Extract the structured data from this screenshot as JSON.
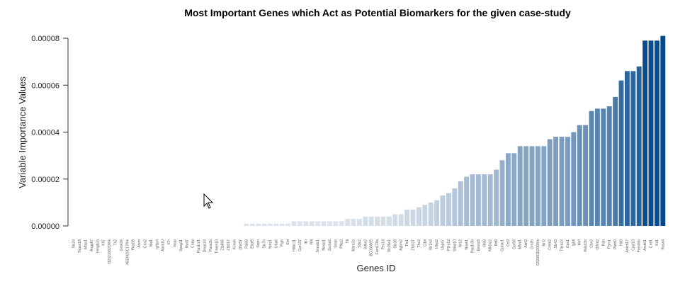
{
  "chart_data": {
    "type": "bar",
    "title": "Most Important Genes which Act as Potential Biomarkers for the given case-study",
    "xlabel": "Genes ID",
    "ylabel": "Variable Importance Values",
    "ylim": [
      0,
      8e-05
    ],
    "yticks": [
      "0.00000",
      "0.00002",
      "0.00004",
      "0.00006",
      "0.00008"
    ],
    "color_low": "#dfe6ee",
    "color_high": "#084a8c",
    "grid": false,
    "categories": [
      "Slc24",
      "Tspan18",
      "Mtap1",
      "Angptl7",
      "Hmgb2a",
      "Kit7",
      "B2021002ORik",
      "Tk2",
      "Gm426",
      "4833420C17Rik",
      "Pkp1l8",
      "Arxm",
      "Cnn2",
      "Nxt1",
      "Igfbp4",
      "Abcb10",
      "Il7r",
      "Vasp",
      "Spag11",
      "Nud7",
      "Cnpy",
      "Ppp1r21",
      "Dnajc24",
      "Panx2b",
      "Tmem18",
      "Zfp866",
      "Zfp317",
      "Kcnab",
      "Dhx57",
      "Pald3",
      "Ebpl5",
      "Sspn",
      "Slc7b",
      "Spry1",
      "Uba6",
      "Pigb",
      "Ehf",
      "Hdac11",
      "Gpr137",
      "Itln",
      "Rfll",
      "Smndc1",
      "Nosip1",
      "Zcchc6",
      "Strab",
      "Pfkp2",
      "Ttl",
      "Marc2a",
      "Sde2",
      "Sdhx2",
      "BC003965",
      "Fam178a",
      "Pex14",
      "Slc35e1",
      "Slc38",
      "Agbm2",
      "Ttc1",
      "Zfp137",
      "Tbx2",
      "Cdpl",
      "Slc2a3",
      "Ufsp2",
      "Uap47",
      "P2ry12",
      "Stepl10",
      "Nr12",
      "Nuak1",
      "Ppp1r3b",
      "Exosc8",
      "Bid3",
      "Nfkbiz2",
      "Bd9",
      "Gpbar1",
      "Ccl3",
      "Gpr56",
      "Mbnl1",
      "Adrl2",
      "Grn2b",
      "G530011O06Rik",
      "Nrf2",
      "Crebl2",
      "Slc43",
      "Tbxa23",
      "Gpc1",
      "Igbfl",
      "Mef",
      "Rab33b",
      "Cbx3",
      "Olfml2",
      "Rab",
      "Pam1",
      "Pleld2",
      "Hlt3",
      "Ankrd17",
      "Cpsf13",
      "Fam46b",
      "Arsb01",
      "Cntf1",
      "Kit1",
      "Rasa4"
    ],
    "values": [
      0,
      0,
      0,
      0,
      0,
      0,
      0,
      0,
      0,
      0,
      0,
      0,
      0,
      0,
      0,
      0,
      0,
      0,
      0,
      0,
      0,
      0,
      0,
      0,
      0,
      0,
      0,
      0,
      0,
      1e-06,
      1e-06,
      1e-06,
      1e-06,
      1e-06,
      1e-06,
      1e-06,
      1e-06,
      2e-06,
      2e-06,
      2e-06,
      2e-06,
      2e-06,
      2e-06,
      2e-06,
      2e-06,
      2e-06,
      3e-06,
      3e-06,
      3e-06,
      4e-06,
      4e-06,
      4e-06,
      4e-06,
      4e-06,
      5e-06,
      5e-06,
      7e-06,
      7e-06,
      8e-06,
      9e-06,
      1e-05,
      1.1e-05,
      1.3e-05,
      1.4e-05,
      1.6e-05,
      1.9e-05,
      2.1e-05,
      2.2e-05,
      2.2e-05,
      2.2e-05,
      2.2e-05,
      2.4e-05,
      2.8e-05,
      3.1e-05,
      3.1e-05,
      3.4e-05,
      3.4e-05,
      3.4e-05,
      3.4e-05,
      3.4e-05,
      3.7e-05,
      3.8e-05,
      3.8e-05,
      3.8e-05,
      4e-05,
      4.3e-05,
      4.3e-05,
      4.9e-05,
      5e-05,
      5e-05,
      5.1e-05,
      5.5e-05,
      6.2e-05,
      6.6e-05,
      6.6e-05,
      6.8e-05,
      7.9e-05,
      7.9e-05,
      7.9e-05,
      8.1e-05
    ]
  }
}
